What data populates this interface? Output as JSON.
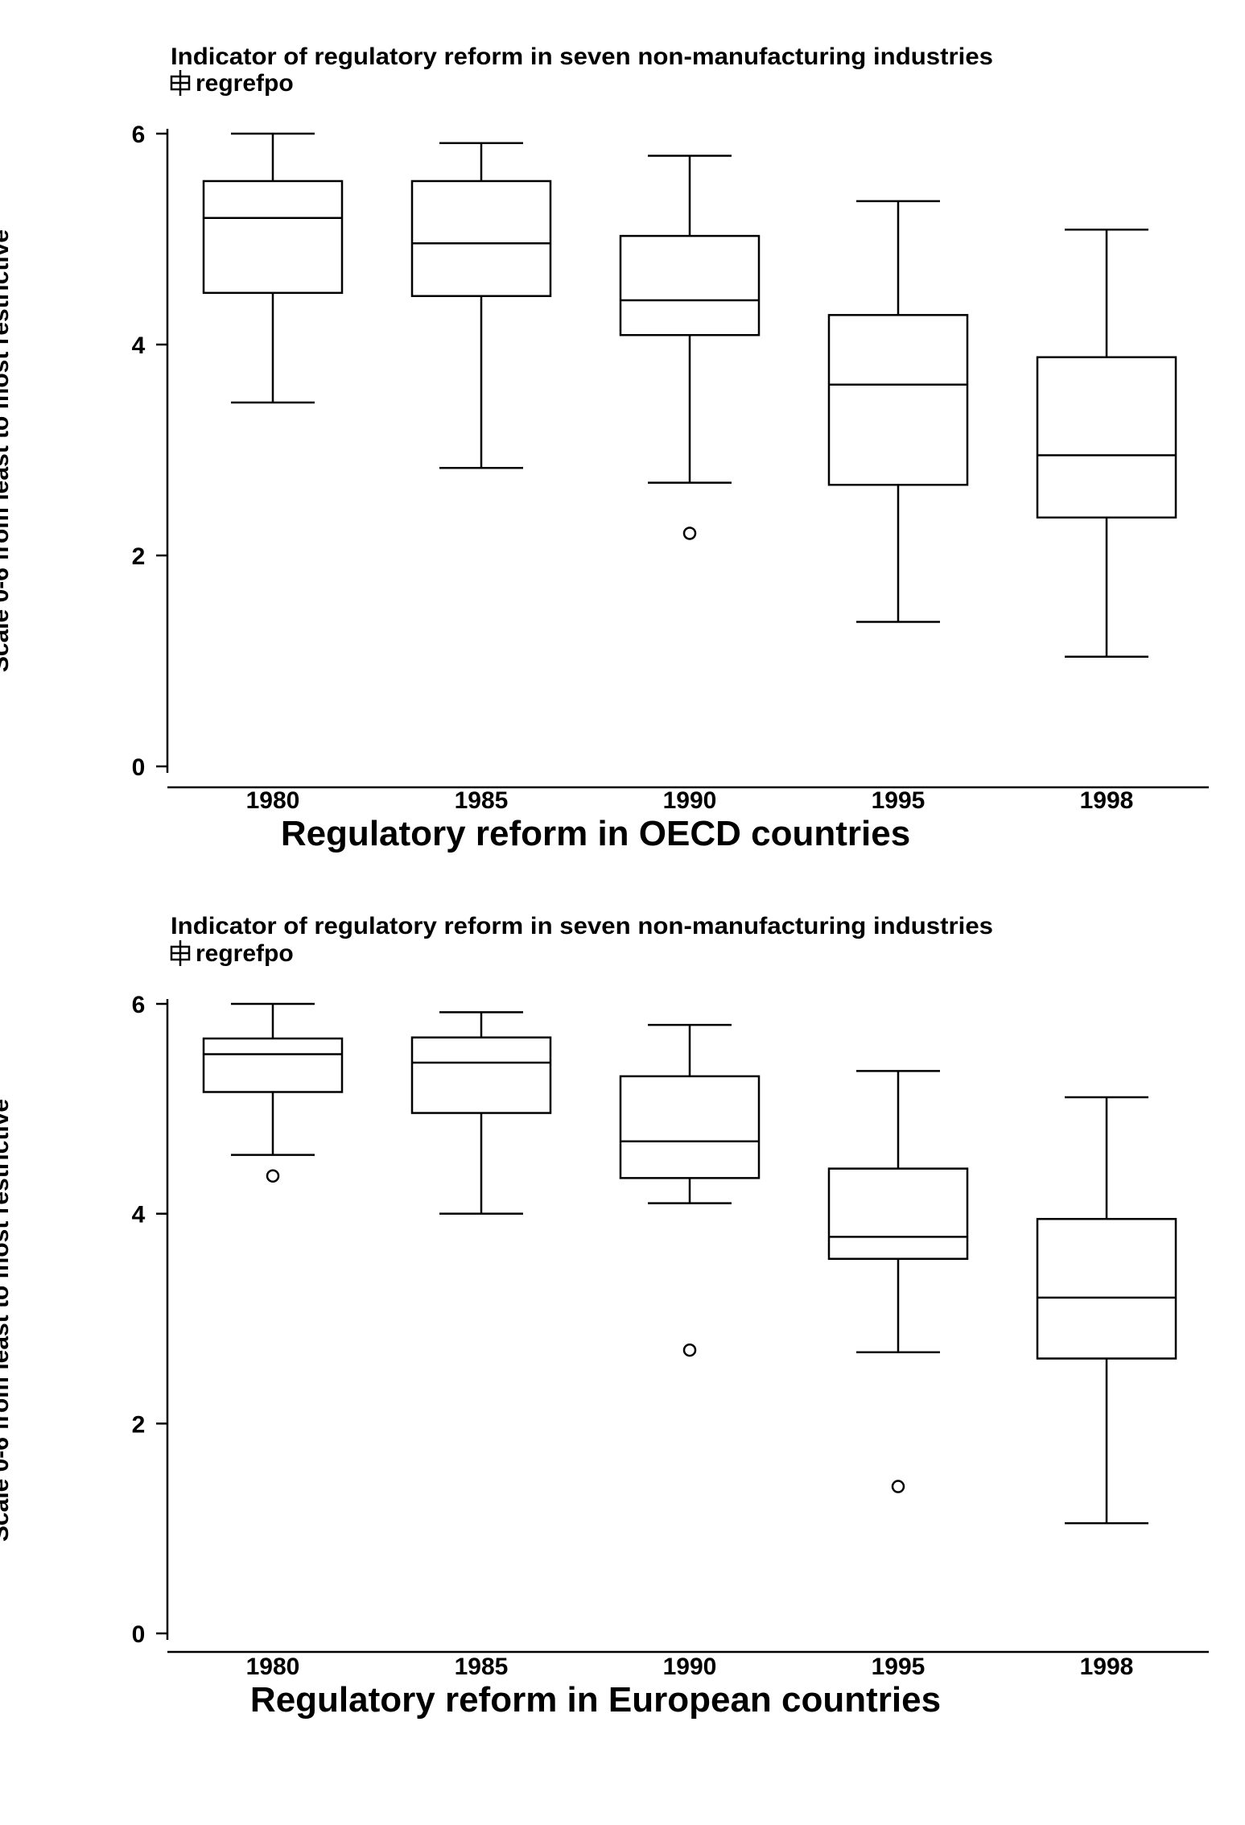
{
  "chart_data": [
    {
      "type": "box",
      "subtitle": "Indicator of regulatory reform in seven non-manufacturing industries",
      "legend": [
        "regrefpo"
      ],
      "legend_placement": "top-left",
      "xlabel": "Regulatory reform in OECD countries",
      "ylabel": "Scale 0-6 from least to most restrictive",
      "ylim": [
        0,
        6
      ],
      "yticks": [
        0,
        2,
        4,
        6
      ],
      "categories": [
        "1980",
        "1985",
        "1990",
        "1995",
        "1998"
      ],
      "boxes": [
        {
          "min": 3.45,
          "q1": 4.49,
          "median": 5.2,
          "q3": 5.55,
          "max": 6.0,
          "outliers": []
        },
        {
          "min": 2.83,
          "q1": 4.46,
          "median": 4.96,
          "q3": 5.55,
          "max": 5.91,
          "outliers": []
        },
        {
          "min": 2.69,
          "q1": 4.09,
          "median": 4.42,
          "q3": 5.03,
          "max": 5.79,
          "outliers": [
            2.21
          ]
        },
        {
          "min": 1.37,
          "q1": 2.67,
          "median": 3.62,
          "q3": 4.28,
          "max": 5.36,
          "outliers": []
        },
        {
          "min": 1.04,
          "q1": 2.36,
          "median": 2.95,
          "q3": 3.88,
          "max": 5.09,
          "outliers": []
        }
      ]
    },
    {
      "type": "box",
      "subtitle": "Indicator of regulatory reform in seven non-manufacturing industries",
      "legend": [
        "regrefpo"
      ],
      "legend_placement": "top-left",
      "xlabel": "Regulatory reform in European countries",
      "ylabel": "Scale 0-6 from least to most restrictive",
      "ylim": [
        0,
        6
      ],
      "yticks": [
        0,
        2,
        4,
        6
      ],
      "categories": [
        "1980",
        "1985",
        "1990",
        "1995",
        "1998"
      ],
      "boxes": [
        {
          "min": 4.56,
          "q1": 5.16,
          "median": 5.52,
          "q3": 5.67,
          "max": 6.0,
          "outliers": [
            4.36
          ]
        },
        {
          "min": 4.0,
          "q1": 4.96,
          "median": 5.44,
          "q3": 5.68,
          "max": 5.92,
          "outliers": []
        },
        {
          "min": 4.1,
          "q1": 4.34,
          "median": 4.69,
          "q3": 5.31,
          "max": 5.8,
          "outliers": [
            2.7
          ]
        },
        {
          "min": 2.68,
          "q1": 3.57,
          "median": 3.78,
          "q3": 4.43,
          "max": 5.36,
          "outliers": [
            1.4
          ]
        },
        {
          "min": 1.05,
          "q1": 2.62,
          "median": 3.2,
          "q3": 3.95,
          "max": 5.11,
          "outliers": []
        }
      ]
    }
  ]
}
